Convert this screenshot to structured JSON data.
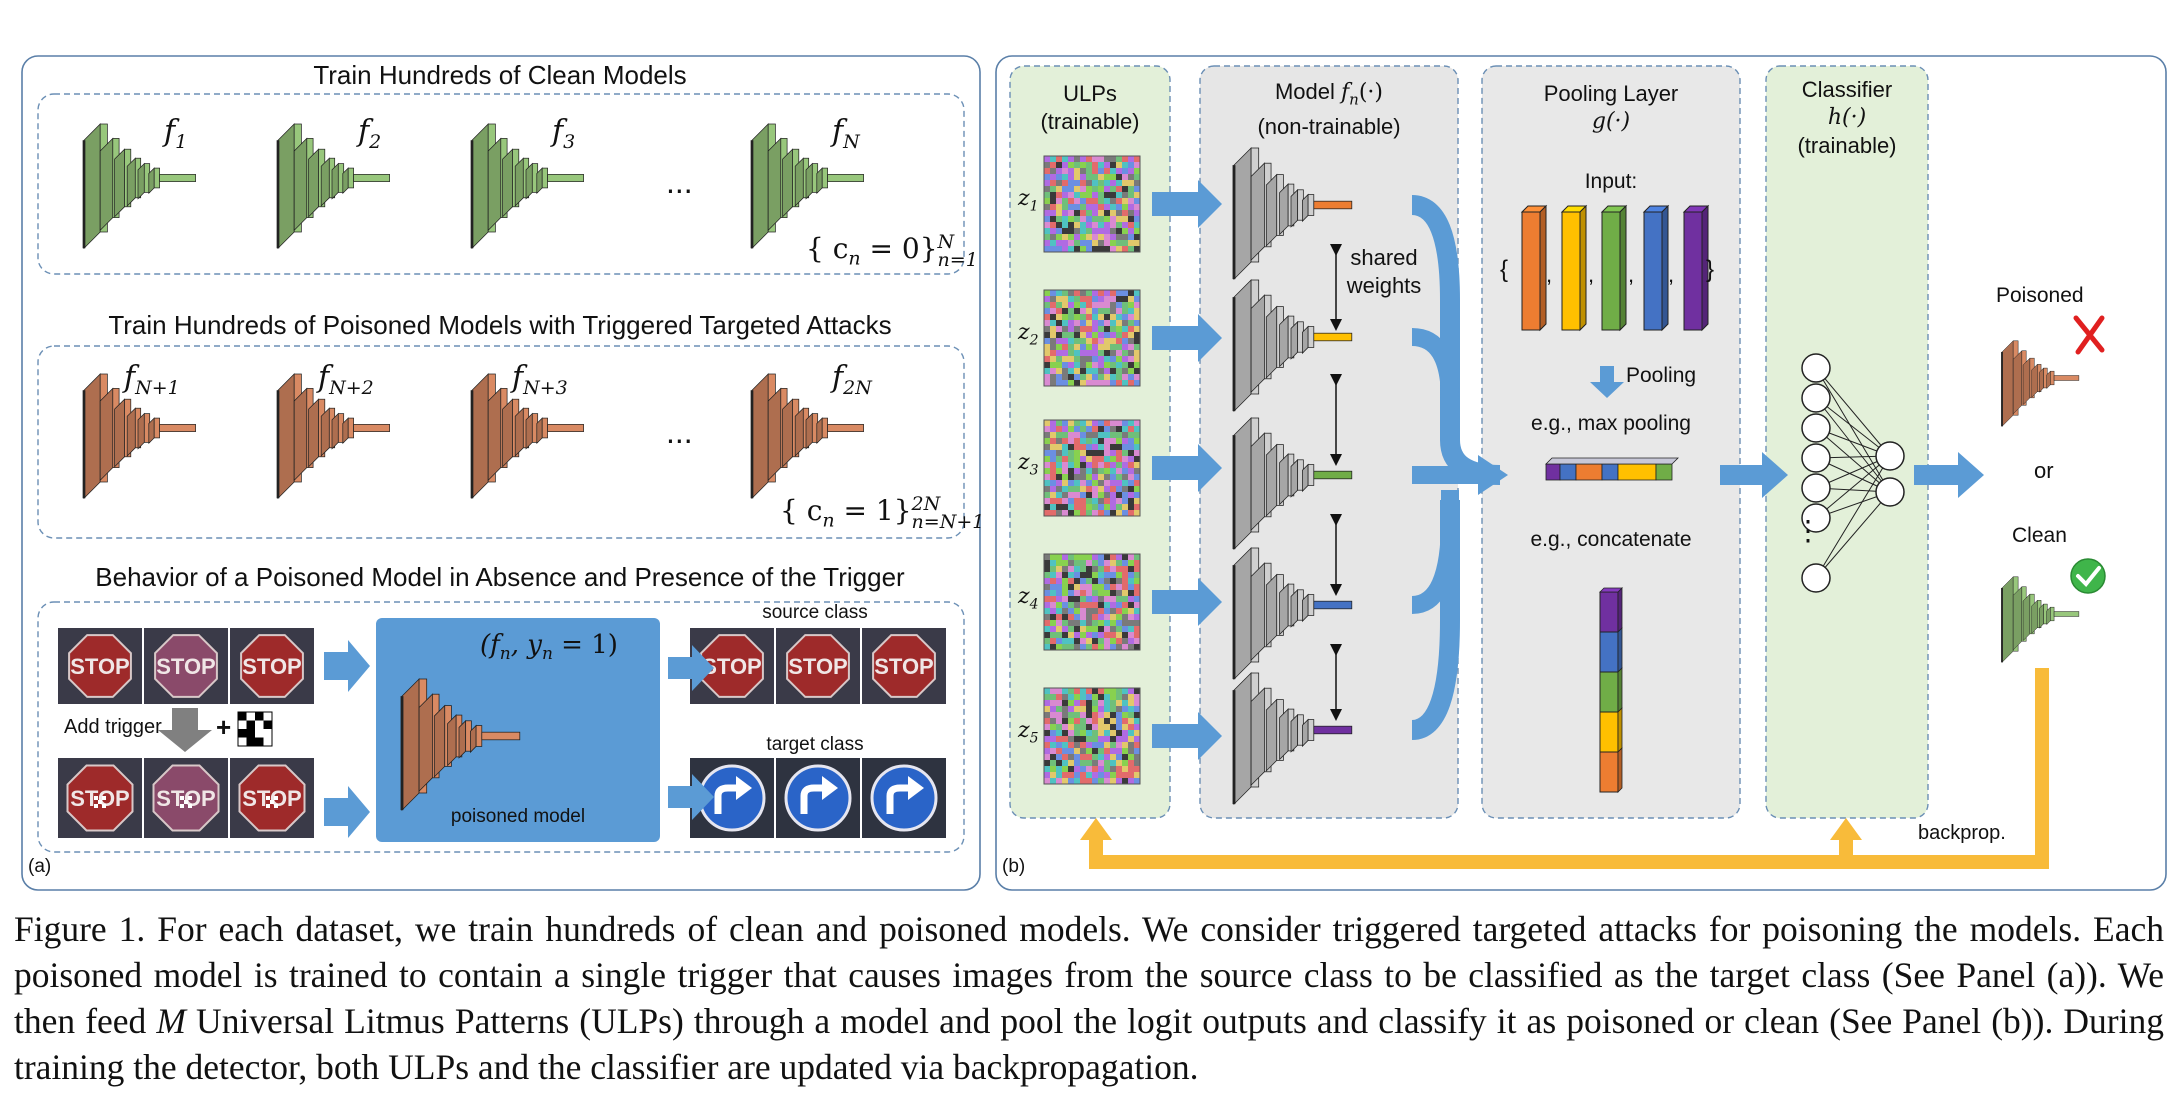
{
  "panel_a": {
    "tag": "(a)",
    "clean_title": "Train Hundreds of Clean Models",
    "poisoned_title": "Train Hundreds of Poisoned Models with Triggered Targeted Attacks",
    "behavior_title": "Behavior of a Poisoned Model in Absence and Presence of the Trigger",
    "clean_models": [
      "f",
      "f",
      "f",
      "f"
    ],
    "clean_subs": [
      "1",
      "2",
      "3",
      "N"
    ],
    "poisoned_subs": [
      "N+1",
      "N+2",
      "N+3",
      "2N"
    ],
    "ellipsis": "...",
    "clean_label": {
      "body": "{ c",
      "sub": "n",
      "eq": " = 0}",
      "sup": "N",
      "low": "n=1"
    },
    "poisoned_label": {
      "body": "{ c",
      "sub": "n",
      "eq": " = 1}",
      "sup": "2N",
      "low": "n=N+1"
    },
    "stop_text": "STOP",
    "add_trigger": "Add trigger",
    "plus": "+",
    "poisoned_model_label": "poisoned model",
    "poisoned_model_tuple": "(f",
    "poisoned_model_tuple_sub": "n",
    "poisoned_model_tuple_rest": ", y",
    "poisoned_model_tuple_sub2": "n",
    "poisoned_model_tuple_end": " = 1)",
    "source_class": "source class",
    "target_class": "target class"
  },
  "panel_b": {
    "tag": "(b)",
    "ulps_title": "ULPs",
    "ulps_sub": "(trainable)",
    "z_labels": [
      "z",
      "z",
      "z",
      "z",
      "z"
    ],
    "z_subs": [
      "1",
      "2",
      "3",
      "4",
      "5"
    ],
    "model_title": "Model",
    "model_fn": "f",
    "model_fn_sub": "n",
    "model_fn_arg": "(·)",
    "model_sub": "(non-trainable)",
    "shared_weights_1": "shared",
    "shared_weights_2": "weights",
    "pool_title": "Pooling Layer",
    "pool_fn": "g(·)",
    "pool_input": "Input:",
    "brace_open": "{",
    "brace_close": "}",
    "comma": ",",
    "pooling_label": "Pooling",
    "max_pooling": "e.g., max pooling",
    "concatenate": "e.g., concatenate",
    "classifier_title": "Classifier",
    "classifier_fn": "h(·)",
    "classifier_sub": "(trainable)",
    "poisoned_out": "Poisoned",
    "or_text": "or",
    "clean_out": "Clean",
    "backprop": "backprop.",
    "node_ellipsis": "⋮"
  },
  "colors": {
    "clean_green": "#98c77c",
    "poison_orange": "#d98a63",
    "gray_model": "#c8c8c8",
    "arrow_blue": "#5b9bd5",
    "backprop_yellow": "#f8bb3a",
    "ulp_panel": "#e3f0d9",
    "model_panel": "#e6e6e6",
    "pool_panel": "#e8e8e8",
    "poisoned_box": "#5b9bd5",
    "vec_orange": "#ed7d31",
    "vec_yellow": "#ffc000",
    "vec_green": "#70ad47",
    "vec_blue": "#4472c4",
    "vec_purple": "#7030a0"
  },
  "caption": {
    "prefix": "Figure 1. For each dataset, we train hundreds of clean and poisoned models. We consider triggered targeted attacks for poisoning the models. Each poisoned model is trained to contain a single trigger that causes images from the source class to be classified as the target class (See Panel (a)). We then feed ",
    "m": "M",
    "suffix": " Universal Litmus Patterns (ULPs) through a model and pool the logit outputs and classify it as poisoned or clean (See Panel (b)). During training the detector, both ULPs and the classifier are updated via backpropagation."
  }
}
